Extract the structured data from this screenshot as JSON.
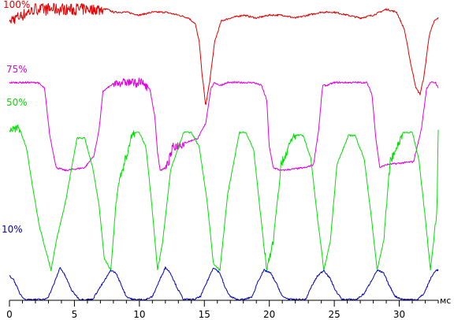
{
  "chart_data": {
    "type": "line",
    "title": "",
    "xlabel": "",
    "ylabel": "",
    "x_unit": "мс",
    "xlim": [
      0,
      33
    ],
    "x_ticks": [
      {
        "value": 0,
        "label": "0"
      },
      {
        "value": 5,
        "label": "5"
      },
      {
        "value": 10,
        "label": "10"
      },
      {
        "value": 15,
        "label": "15"
      },
      {
        "value": 20,
        "label": "20"
      },
      {
        "value": 25,
        "label": "25"
      },
      {
        "value": 30,
        "label": "30"
      }
    ],
    "x_minor_step": 1,
    "series": [
      {
        "name": "100%",
        "color": "#e00000",
        "x": [
          0,
          0.5,
          1,
          1.5,
          2,
          3,
          4,
          5,
          6,
          7,
          7.5,
          8,
          9,
          10,
          11,
          12,
          13,
          13.8,
          14.3,
          14.6,
          14.8,
          15.1,
          15.4,
          15.8,
          16.3,
          17,
          18,
          19,
          20,
          21,
          22,
          23,
          24,
          25,
          26,
          27,
          28,
          29,
          29.8,
          30.4,
          30.9,
          31.3,
          31.6,
          31.9,
          32.3,
          32.7,
          33
        ],
        "values": [
          95,
          96,
          97,
          98,
          99,
          99,
          99,
          99,
          99,
          99,
          99,
          98,
          98,
          97,
          98,
          98,
          97,
          96,
          94,
          88,
          78,
          66,
          74,
          88,
          95,
          96,
          97,
          96,
          97,
          97,
          96,
          97,
          98,
          98,
          97,
          96,
          97,
          99,
          98,
          92,
          80,
          72,
          70,
          76,
          90,
          95,
          96
        ],
        "noise": [
          [
            0.1,
            7.2,
            4
          ]
        ]
      },
      {
        "name": "75%",
        "color": "#e000e0",
        "x": [
          0,
          0.8,
          2.2,
          2.7,
          3.1,
          3.6,
          4.3,
          5.8,
          6.5,
          6.9,
          7.2,
          7.5,
          7.8,
          8.3,
          10.2,
          10.8,
          11.2,
          11.4,
          11.6,
          12.1,
          12.6,
          14.5,
          15.1,
          15.5,
          15.8,
          16.2,
          16.8,
          18.8,
          19.4,
          19.8,
          20.0,
          20.3,
          20.9,
          22.8,
          23.4,
          23.8,
          24.1,
          24.4,
          25.0,
          26.9,
          27.5,
          27.9,
          28.2,
          28.5,
          29.0,
          31.1,
          31.7,
          32.1,
          32.4,
          32.8,
          33
        ],
        "values": [
          74,
          74,
          74,
          72,
          56,
          45,
          44,
          45,
          49,
          58,
          71,
          72,
          73,
          74,
          74,
          72,
          62,
          50,
          44,
          45,
          52,
          55,
          60,
          72,
          74,
          73,
          74,
          74,
          73,
          68,
          52,
          45,
          44,
          45,
          46,
          58,
          73,
          73,
          74,
          74,
          74,
          70,
          55,
          45,
          46,
          47,
          58,
          72,
          74,
          74,
          72
        ],
        "noise": [
          [
            8.0,
            10.6,
            3
          ],
          [
            12.0,
            13.5,
            3
          ]
        ]
      },
      {
        "name": "50%",
        "color": "#00e000",
        "x": [
          0,
          0.8,
          1.3,
          1.8,
          2.3,
          3.2,
          3.6,
          4.3,
          5.2,
          5.8,
          6.4,
          6.9,
          7.3,
          7.8,
          8.3,
          9.5,
          10.0,
          10.5,
          10.9,
          11.4,
          11.8,
          12.4,
          13.4,
          14.0,
          14.6,
          15.2,
          15.7,
          16.2,
          16.8,
          17.7,
          18.2,
          18.8,
          19.3,
          19.8,
          20.3,
          20.9,
          21.9,
          22.6,
          23.2,
          23.7,
          24.2,
          24.7,
          25.2,
          26.1,
          26.6,
          27.3,
          27.8,
          28.3,
          28.8,
          29.3,
          30.3,
          31.0,
          31.5,
          32.0,
          32.4,
          32.9,
          33
        ],
        "values": [
          58,
          58,
          52,
          38,
          25,
          10,
          20,
          33,
          55,
          55,
          45,
          32,
          14,
          10,
          38,
          57,
          57,
          52,
          35,
          10,
          20,
          44,
          57,
          57,
          52,
          34,
          12,
          10,
          36,
          57,
          57,
          51,
          30,
          10,
          20,
          46,
          56,
          56,
          48,
          28,
          10,
          20,
          46,
          56,
          56,
          48,
          30,
          10,
          20,
          47,
          57,
          57,
          48,
          28,
          10,
          30,
          58
        ],
        "noise": [
          [
            0,
            0.8,
            3
          ],
          [
            8.0,
            9.6,
            3
          ],
          [
            19.5,
            20.5,
            2
          ],
          [
            20.6,
            22.0,
            3
          ],
          [
            28.8,
            30.2,
            3
          ],
          [
            32.7,
            33,
            2
          ]
        ]
      },
      {
        "name": "10%",
        "color": "#0000c0",
        "x": [
          0,
          0.3,
          0.8,
          1.2,
          1.6,
          2.2,
          2.7,
          3.0,
          3.4,
          3.9,
          4.3,
          4.8,
          5.4,
          6.0,
          6.4,
          6.8,
          7.4,
          7.8,
          8.2,
          8.6,
          9.0,
          9.5,
          10.0,
          10.5,
          11.0,
          11.5,
          12.0,
          12.4,
          12.9,
          13.4,
          13.8,
          14.2,
          14.7,
          15.2,
          15.7,
          16.2,
          16.6,
          17.0,
          17.5,
          18.1,
          18.7,
          19.1,
          19.6,
          20.1,
          20.6,
          21.0,
          21.6,
          22.2,
          22.8,
          23.2,
          23.7,
          24.2,
          24.7,
          25.1,
          25.6,
          26.2,
          26.7,
          27.3,
          27.8,
          28.3,
          28.8,
          29.2,
          29.7,
          30.3,
          30.9,
          31.4,
          31.9,
          32.4,
          32.8,
          33
        ],
        "values": [
          8,
          7,
          2,
          0,
          0,
          0,
          0,
          1,
          5,
          11,
          8,
          3,
          0,
          0,
          0,
          3,
          7,
          10,
          9,
          5,
          1,
          0,
          0,
          0,
          1,
          6,
          11,
          9,
          4,
          0,
          0,
          0,
          1,
          6,
          11,
          9,
          4,
          1,
          0,
          0,
          1,
          6,
          10,
          9,
          5,
          1,
          0,
          0,
          0,
          4,
          8,
          10,
          7,
          3,
          0,
          0,
          0,
          2,
          6,
          10,
          9,
          5,
          1,
          0,
          0,
          0,
          2,
          7,
          10,
          10
        ],
        "noise": []
      }
    ]
  }
}
